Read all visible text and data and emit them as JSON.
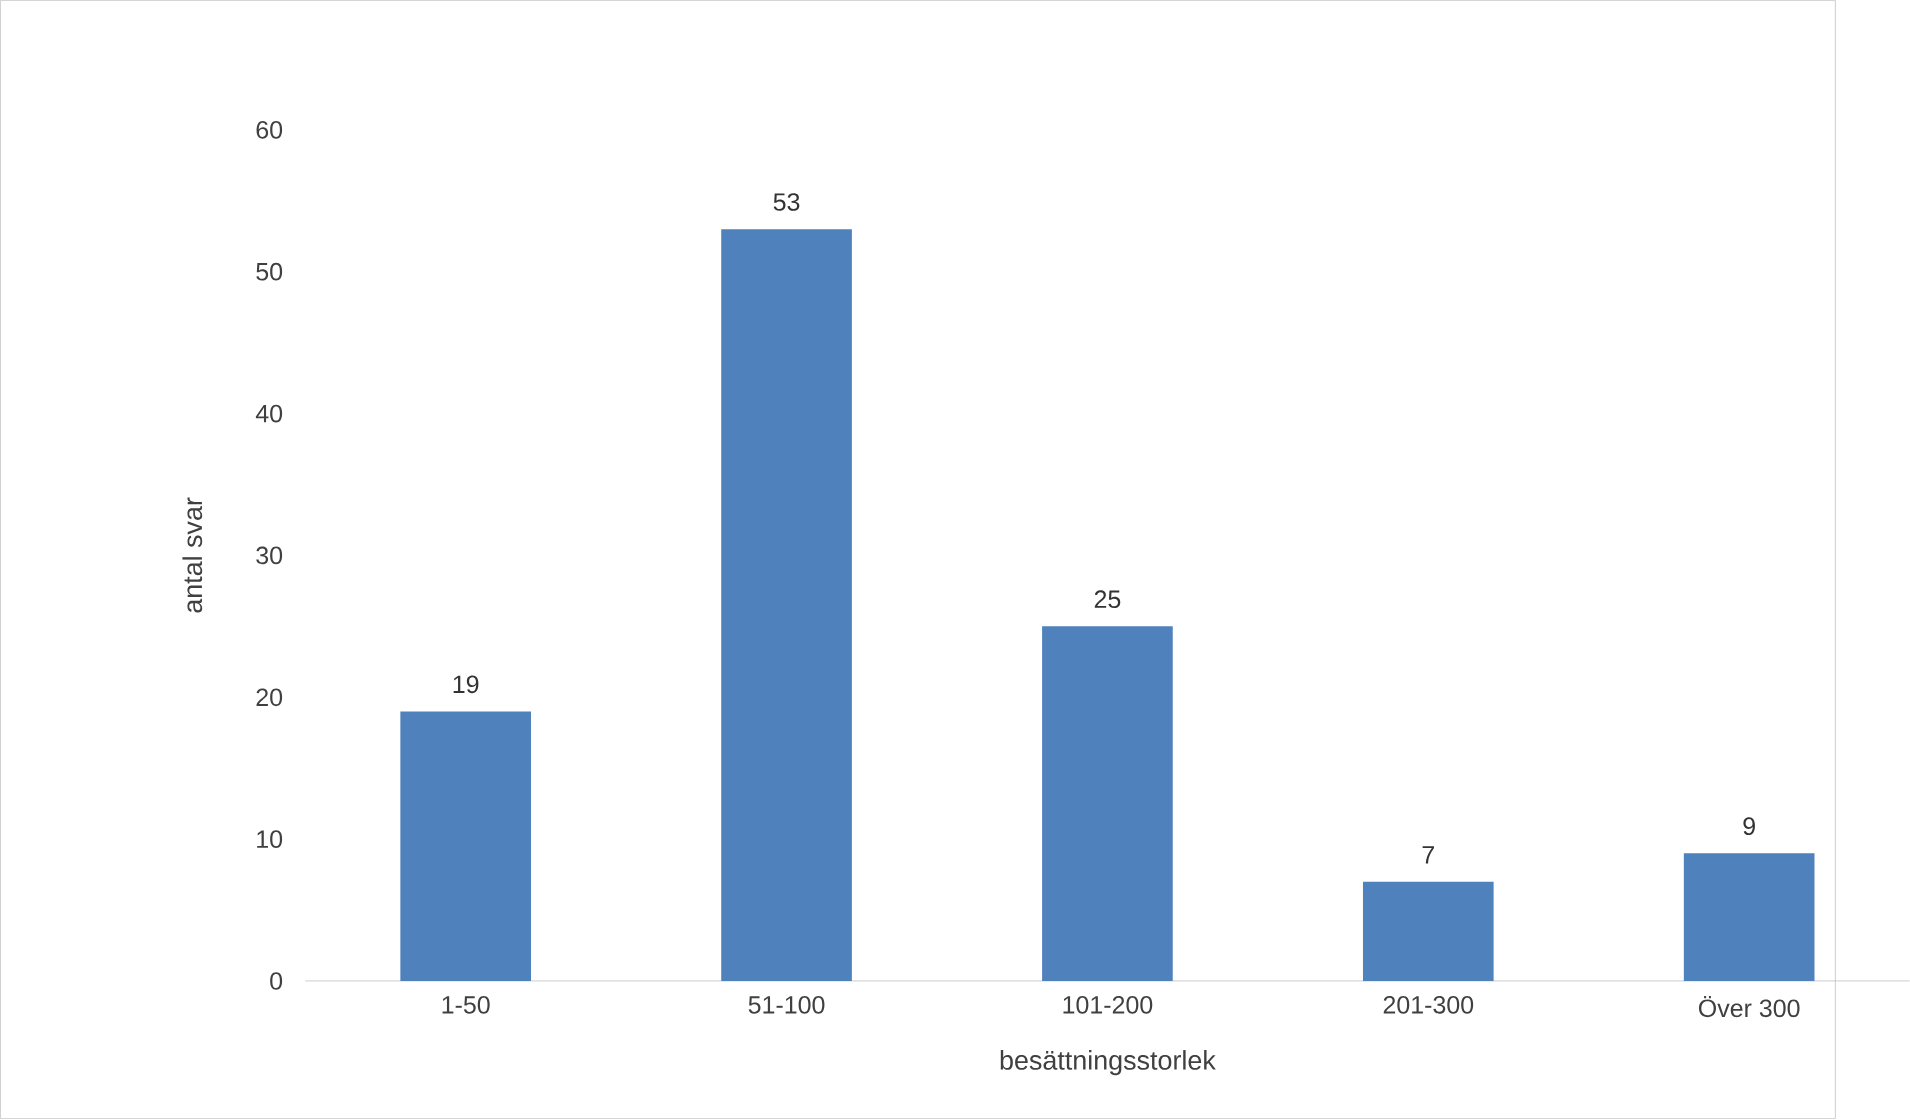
{
  "chart_data": {
    "type": "bar",
    "xlabel": "besättningsstorlek",
    "ylabel": "antal svar",
    "categories": [
      "1-50",
      "51-100",
      "101-200",
      "201-300",
      "Över 300"
    ],
    "values": [
      19,
      53,
      25,
      7,
      9
    ],
    "color": "#4f81bd",
    "ylim": [
      0,
      60
    ],
    "yticks": [
      0,
      10,
      20,
      30,
      40,
      50,
      60
    ],
    "data_labels": true
  }
}
